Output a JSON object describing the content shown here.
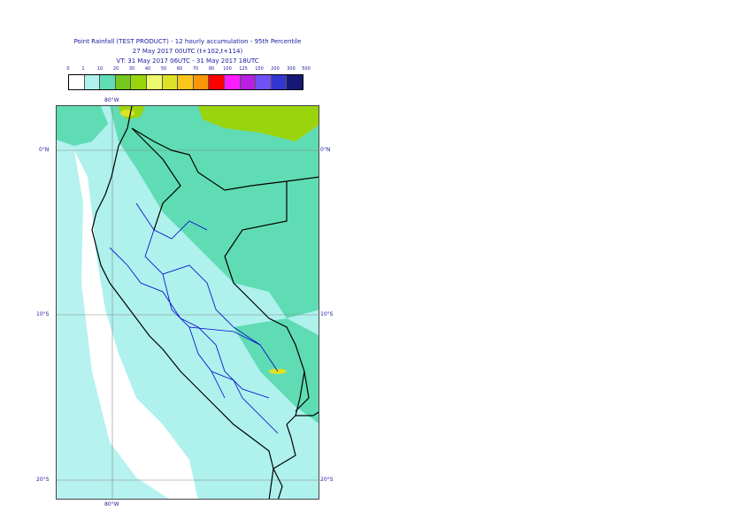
{
  "title": {
    "line1": "Point Rainfall (TEST PRODUCT) - 12 hourly accumulation - 95th Percentile",
    "line2": "27 May 2017 00UTC (t+102,t+114)",
    "line3": "VT: 31 May 2017 06UTC - 31 May 2017 18UTC"
  },
  "legend": {
    "labels": [
      "0",
      "1",
      "10",
      "20",
      "30",
      "40",
      "50",
      "60",
      "70",
      "80",
      "100",
      "125",
      "150",
      "200",
      "300",
      "500"
    ],
    "colors": [
      "#ffffff",
      "#aef1ed",
      "#5fdcb4",
      "#74c81e",
      "#9ad40d",
      "#eefa6e",
      "#dee226",
      "#f8c61c",
      "#fb9609",
      "#ff0000",
      "#ff1cff",
      "#b81fe1",
      "#7050f7",
      "#3337d0",
      "#161878"
    ]
  },
  "map": {
    "lon_labels": {
      "top": "80°W",
      "bottom": "80°W"
    },
    "lat_labels_left": [
      "0°N",
      "10°S",
      "20°S"
    ],
    "lat_labels_right": [
      "0°N",
      "10°S",
      "20°S"
    ],
    "colors": {
      "shade_light": "#aef1ed",
      "shade_medium": "#5fdcb4",
      "shade_green": "#9ad40d",
      "shade_yellow": "#dee226",
      "border_country": "#000000",
      "border_region": "#0000cc",
      "gridline": "#888888"
    }
  }
}
